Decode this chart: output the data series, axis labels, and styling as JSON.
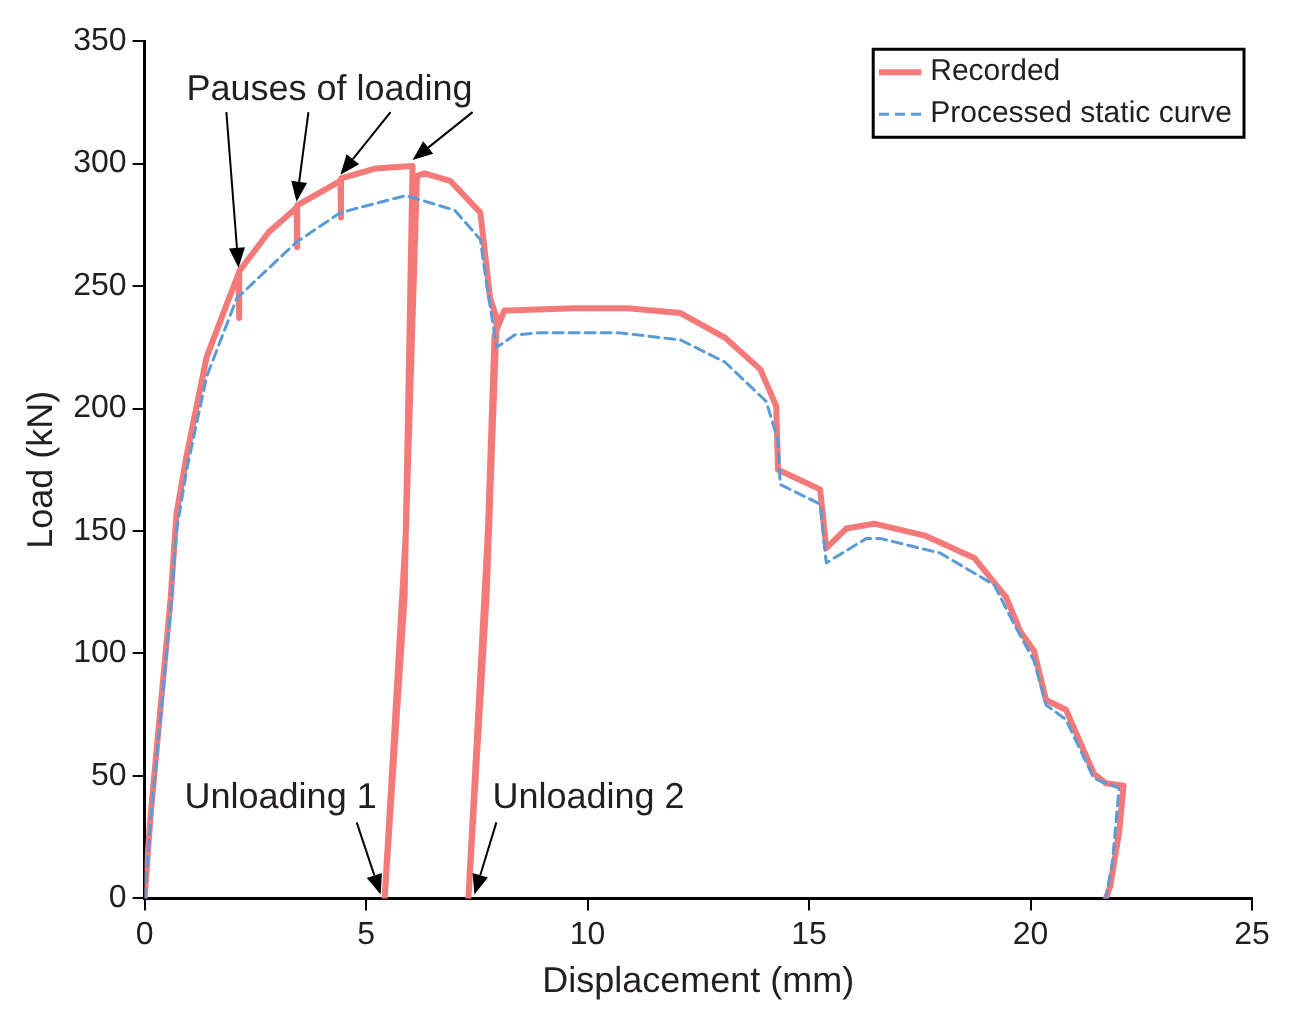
{
  "chart_data": {
    "type": "line",
    "xlabel": "Displacement (mm)",
    "ylabel": "Load (kN)",
    "xlim": [
      0,
      25
    ],
    "ylim": [
      0,
      350
    ],
    "xticks": [
      0,
      5,
      10,
      15,
      20,
      25
    ],
    "yticks": [
      0,
      50,
      100,
      150,
      200,
      250,
      300,
      350
    ],
    "grid": false,
    "legend": "top right",
    "marker": "none",
    "series": [
      {
        "name": "Recorded",
        "color": "#f47a7a",
        "line_style": "solid",
        "x": [
          0,
          0.14,
          0.59,
          0.72,
          0.95,
          1.4,
          1.8,
          2.12,
          2.12,
          2.15,
          2.8,
          3.43,
          3.43,
          3.46,
          4.42,
          4.42,
          4.45,
          5.2,
          6.05,
          5.87,
          5.42,
          5.9,
          6.15,
          6.32,
          6.9,
          7.58,
          7.8,
          7.95,
          7.72,
          7.31,
          7.75,
          7.9,
          8.12,
          9.7,
          10.9,
          12.1,
          13.1,
          13.9,
          14.26,
          14.3,
          15.25,
          15.39,
          15.84,
          16.47,
          17.64,
          18.73,
          19.45,
          19.77,
          20.08,
          20.35,
          20.8,
          21.43,
          21.7,
          22.1,
          22.0,
          21.8,
          21.7
        ],
        "values": [
          0,
          35,
          123,
          157,
          181,
          221,
          240,
          255,
          237,
          256,
          272,
          282,
          266,
          283,
          293,
          278,
          294,
          298,
          299,
          123,
          0,
          150,
          295,
          296,
          293,
          280,
          245,
          237,
          123,
          0,
          150,
          230,
          240,
          241,
          241,
          239,
          229,
          216,
          201,
          175,
          167,
          143,
          151,
          153,
          148,
          139,
          123,
          109,
          101,
          81,
          77,
          51,
          47,
          46,
          27,
          5,
          0
        ]
      },
      {
        "name": "Processed static curve",
        "color": "#5b9bd5",
        "line_style": "dashed",
        "x": [
          0,
          0.14,
          0.59,
          0.72,
          0.95,
          1.4,
          2.08,
          3.43,
          4.42,
          5.9,
          7.0,
          7.58,
          7.72,
          7.95,
          8.35,
          8.93,
          10.7,
          12.1,
          13.1,
          14.03,
          14.3,
          14.35,
          15.25,
          15.39,
          16.3,
          16.6,
          17.96,
          19.18,
          19.63,
          20.08,
          20.35,
          20.8,
          21.43,
          22.0,
          21.85,
          21.7
        ],
        "values": [
          0,
          32,
          118,
          150,
          175,
          213,
          245,
          268,
          280,
          287,
          281,
          269,
          251,
          225,
          230,
          231,
          231,
          228,
          219,
          203,
          187,
          169,
          161,
          137,
          147,
          147,
          141,
          128,
          112,
          97,
          79,
          73,
          49,
          45,
          15,
          0
        ]
      }
    ],
    "annotations": [
      {
        "text": "Pauses of loading",
        "x": 6.05,
        "y": 299
      },
      {
        "text": "Unloading 1",
        "x": 5.42,
        "y": 0
      },
      {
        "text": "Unloading 2",
        "x": 7.31,
        "y": 0
      }
    ]
  }
}
